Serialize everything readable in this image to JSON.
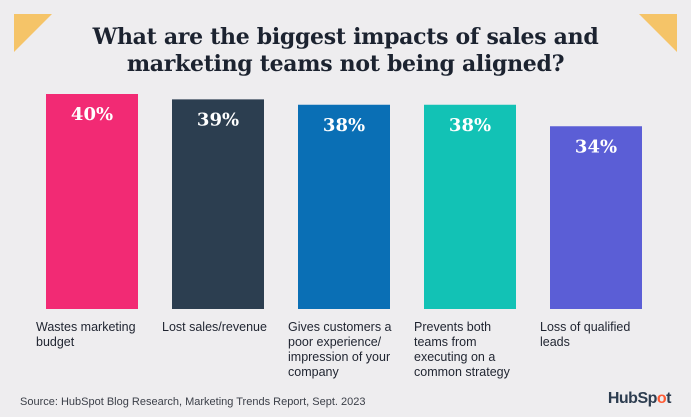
{
  "chart_data": {
    "type": "bar",
    "title_lines": [
      "What are the biggest impacts of sales and",
      "marketing teams not being aligned?"
    ],
    "categories": [
      [
        "Wastes marketing",
        "budget"
      ],
      [
        "Lost sales/revenue"
      ],
      [
        "Gives customers a",
        "poor experience/",
        "impression of your",
        "company"
      ],
      [
        "Prevents both",
        "teams from",
        "executing on a",
        "common strategy"
      ],
      [
        "Loss of qualified",
        "leads"
      ]
    ],
    "values": [
      40,
      39,
      38,
      38,
      34
    ],
    "value_labels": [
      "40%",
      "39%",
      "38%",
      "38%",
      "34%"
    ],
    "bar_colors": [
      "#f22a74",
      "#2c3e50",
      "#0a6fb5",
      "#12c2b5",
      "#5b5ed6"
    ],
    "ylim": [
      0,
      40
    ],
    "grid": false,
    "legend": "none"
  },
  "source_text": "Source: HubSpot Blog Research, Marketing Trends Report, Sept. 2023",
  "logo": {
    "part1": "HubSp",
    "part2": "o",
    "part3": "t"
  },
  "colors": {
    "accent_corner": "#f5c468",
    "background": "#eeedef",
    "title": "#1c2330"
  }
}
